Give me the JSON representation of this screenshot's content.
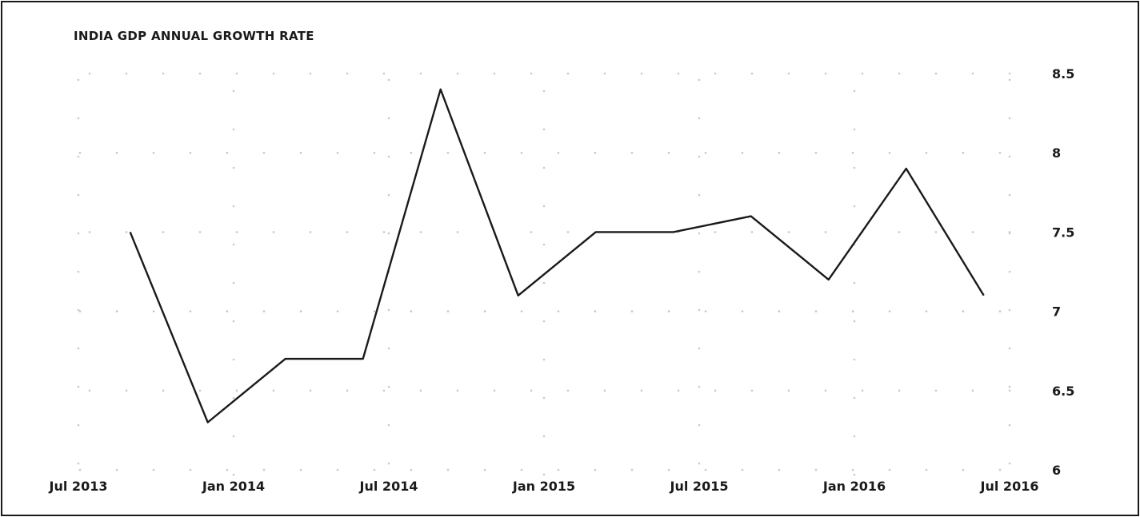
{
  "chart_data": {
    "type": "line",
    "title": "INDIA GDP ANNUAL GROWTH RATE",
    "xlabel": "",
    "ylabel": "",
    "x_ticks": [
      "Jul 2013",
      "Jan 2014",
      "Jul 2014",
      "Jan 2015",
      "Jul 2015",
      "Jan 2016",
      "Jul 2016"
    ],
    "y_ticks": [
      "6",
      "6.5",
      "7",
      "7.5",
      "8",
      "8.5"
    ],
    "ylim": [
      6,
      8.5
    ],
    "xlim": [
      "2013-07",
      "2016-07"
    ],
    "grid": "dotted",
    "y_axis_position": "right",
    "line_color": "#1a1a1a",
    "series": [
      {
        "x": [
          "2013-09",
          "2013-12",
          "2014-03",
          "2014-06",
          "2014-09",
          "2014-12",
          "2015-03",
          "2015-06",
          "2015-09",
          "2015-12",
          "2016-03",
          "2016-06"
        ],
        "values": [
          7.5,
          6.3,
          6.7,
          6.7,
          8.4,
          7.1,
          7.5,
          7.5,
          7.6,
          7.2,
          7.9,
          7.1
        ]
      }
    ]
  }
}
